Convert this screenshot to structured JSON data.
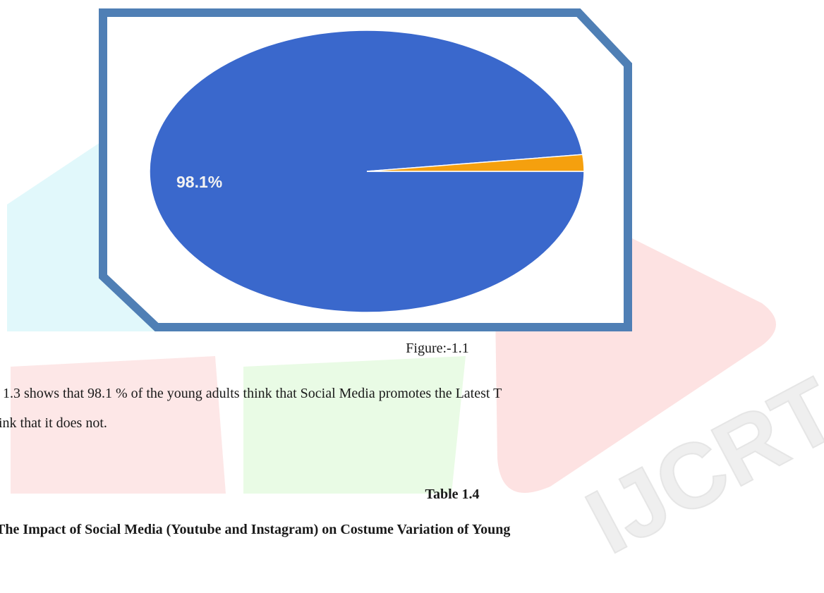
{
  "chart_data": {
    "type": "pie",
    "values": [
      98.1,
      1.9
    ],
    "value_labels": [
      "98.1%",
      null
    ],
    "colors": [
      "#3a68cc",
      "#f5a00e"
    ]
  },
  "document": {
    "caption": "Figure:-1.1",
    "paragraph": [
      "1.3 shows that 98.1 % of the young adults think that Social Media promotes the Latest T",
      "ink that it does not."
    ],
    "table_title": "Table 1.4",
    "table_subtitle": "The Impact of Social Media (Youtube and Instagram) on Costume Variation of Young",
    "watermark": "IJCRT"
  }
}
